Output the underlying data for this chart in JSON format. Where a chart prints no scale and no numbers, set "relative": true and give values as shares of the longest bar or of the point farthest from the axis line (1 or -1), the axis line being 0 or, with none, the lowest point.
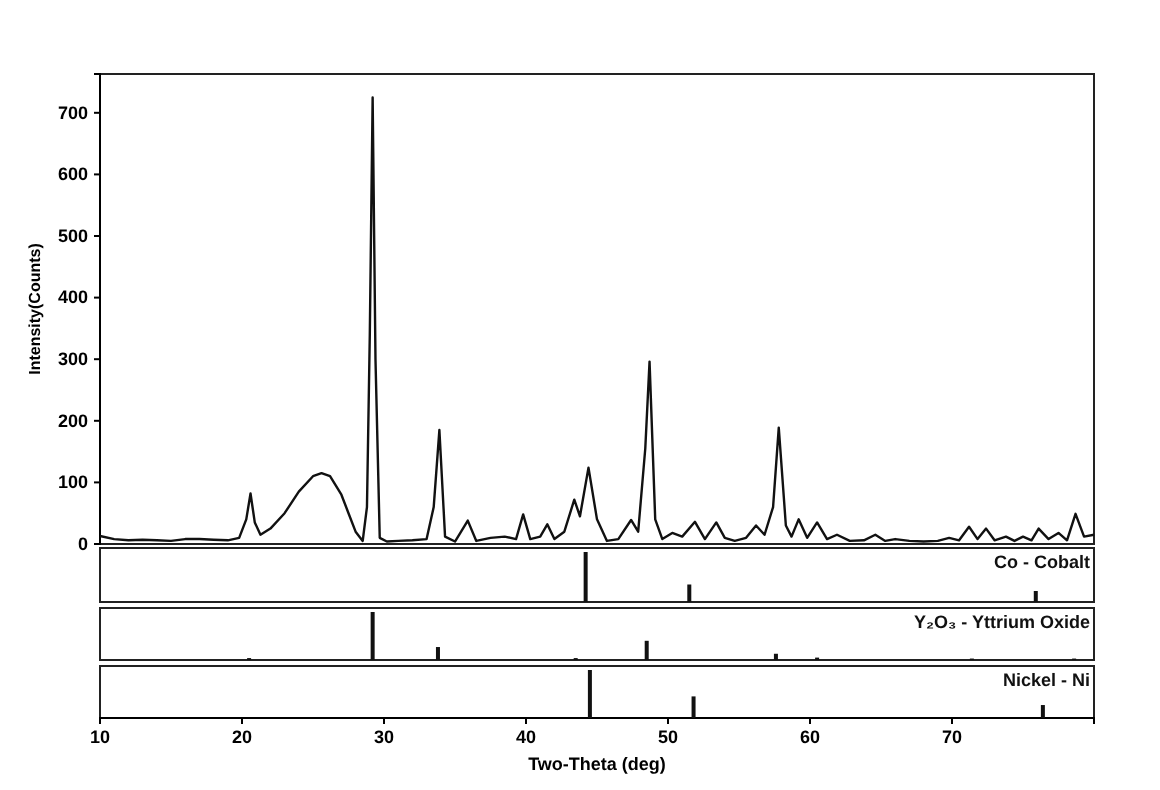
{
  "chart_data": [
    {
      "type": "line",
      "ylabel": "Intensity(Counts)",
      "xlim": [
        10,
        80
      ],
      "ylim": [
        0,
        763
      ],
      "yticks": [
        0,
        100,
        200,
        300,
        400,
        500,
        600,
        700
      ],
      "tick_labels": "y",
      "legend": false,
      "series": [
        {
          "color": "#111111",
          "x": [
            10,
            11,
            12,
            13,
            14,
            15,
            16,
            17,
            18,
            19,
            19.8,
            20.3,
            20.6,
            20.9,
            21.3,
            22,
            23,
            24,
            25,
            25.6,
            26.2,
            27,
            27.5,
            28,
            28.5,
            28.8,
            29.0,
            29.2,
            29.4,
            29.7,
            30.2,
            31,
            32,
            33,
            33.5,
            33.9,
            34.3,
            35,
            35.9,
            36.5,
            37.5,
            38.5,
            39.3,
            39.8,
            40.3,
            41,
            41.5,
            42,
            42.7,
            43.4,
            43.8,
            44.4,
            45,
            45.7,
            46.5,
            47.4,
            47.9,
            48.4,
            48.7,
            49.1,
            49.6,
            50.3,
            51,
            51.9,
            52.6,
            53.4,
            54,
            54.7,
            55.5,
            56.2,
            56.8,
            57.4,
            57.8,
            58.3,
            58.7,
            59.2,
            59.8,
            60.5,
            61.2,
            61.9,
            62.8,
            63.8,
            64.6,
            65.3,
            66,
            67,
            68,
            69,
            69.8,
            70.5,
            71.2,
            71.8,
            72.4,
            73,
            73.8,
            74.4,
            75,
            75.6,
            76.1,
            76.8,
            77.5,
            78.1,
            78.7,
            79.3,
            80
          ],
          "values": [
            13,
            8,
            6,
            7,
            6,
            5,
            8,
            8,
            7,
            6,
            10,
            40,
            82,
            35,
            15,
            25,
            50,
            85,
            110,
            115,
            110,
            80,
            50,
            20,
            5,
            60,
            340,
            725,
            300,
            10,
            4,
            5,
            6,
            8,
            60,
            185,
            12,
            4,
            38,
            5,
            10,
            12,
            8,
            48,
            8,
            12,
            32,
            8,
            20,
            72,
            45,
            124,
            40,
            5,
            8,
            39,
            20,
            155,
            296,
            40,
            8,
            18,
            12,
            36,
            8,
            35,
            10,
            5,
            10,
            30,
            15,
            60,
            189,
            30,
            12,
            40,
            10,
            35,
            8,
            15,
            5,
            6,
            15,
            5,
            8,
            5,
            4,
            5,
            10,
            6,
            28,
            8,
            25,
            6,
            12,
            5,
            12,
            6,
            25,
            8,
            18,
            6,
            49,
            12,
            15
          ]
        }
      ]
    },
    {
      "type": "bar",
      "relative": true,
      "xlim": [
        10,
        80
      ],
      "tick_labels": false,
      "legend": "top right",
      "series": [
        {
          "name": "Co - Cobalt",
          "color": "#111111",
          "x": [
            44.2,
            51.5,
            75.9
          ],
          "values": [
            1,
            0.35,
            0.22
          ]
        }
      ]
    },
    {
      "type": "bar",
      "relative": true,
      "xlim": [
        10,
        80
      ],
      "tick_labels": false,
      "legend": "top right",
      "series": [
        {
          "name": "Y₂O₃ - Yttrium Oxide",
          "color": "#111111",
          "x": [
            20.5,
            29.2,
            33.8,
            43.5,
            48.5,
            57.6,
            60.5,
            71.4,
            78.6
          ],
          "values": [
            0.04,
            1,
            0.27,
            0.04,
            0.4,
            0.13,
            0.05,
            0.03,
            0.03
          ]
        }
      ]
    },
    {
      "type": "bar",
      "relative": true,
      "xlim": [
        10,
        80
      ],
      "xticks": [
        10,
        20,
        30,
        40,
        50,
        60,
        70
      ],
      "tick_labels": "x",
      "xlabel": "Two-Theta (deg)",
      "legend": "top right",
      "series": [
        {
          "name": "Nickel - Ni",
          "color": "#111111",
          "x": [
            44.5,
            51.8,
            76.4
          ],
          "values": [
            1,
            0.45,
            0.27
          ]
        }
      ]
    }
  ]
}
